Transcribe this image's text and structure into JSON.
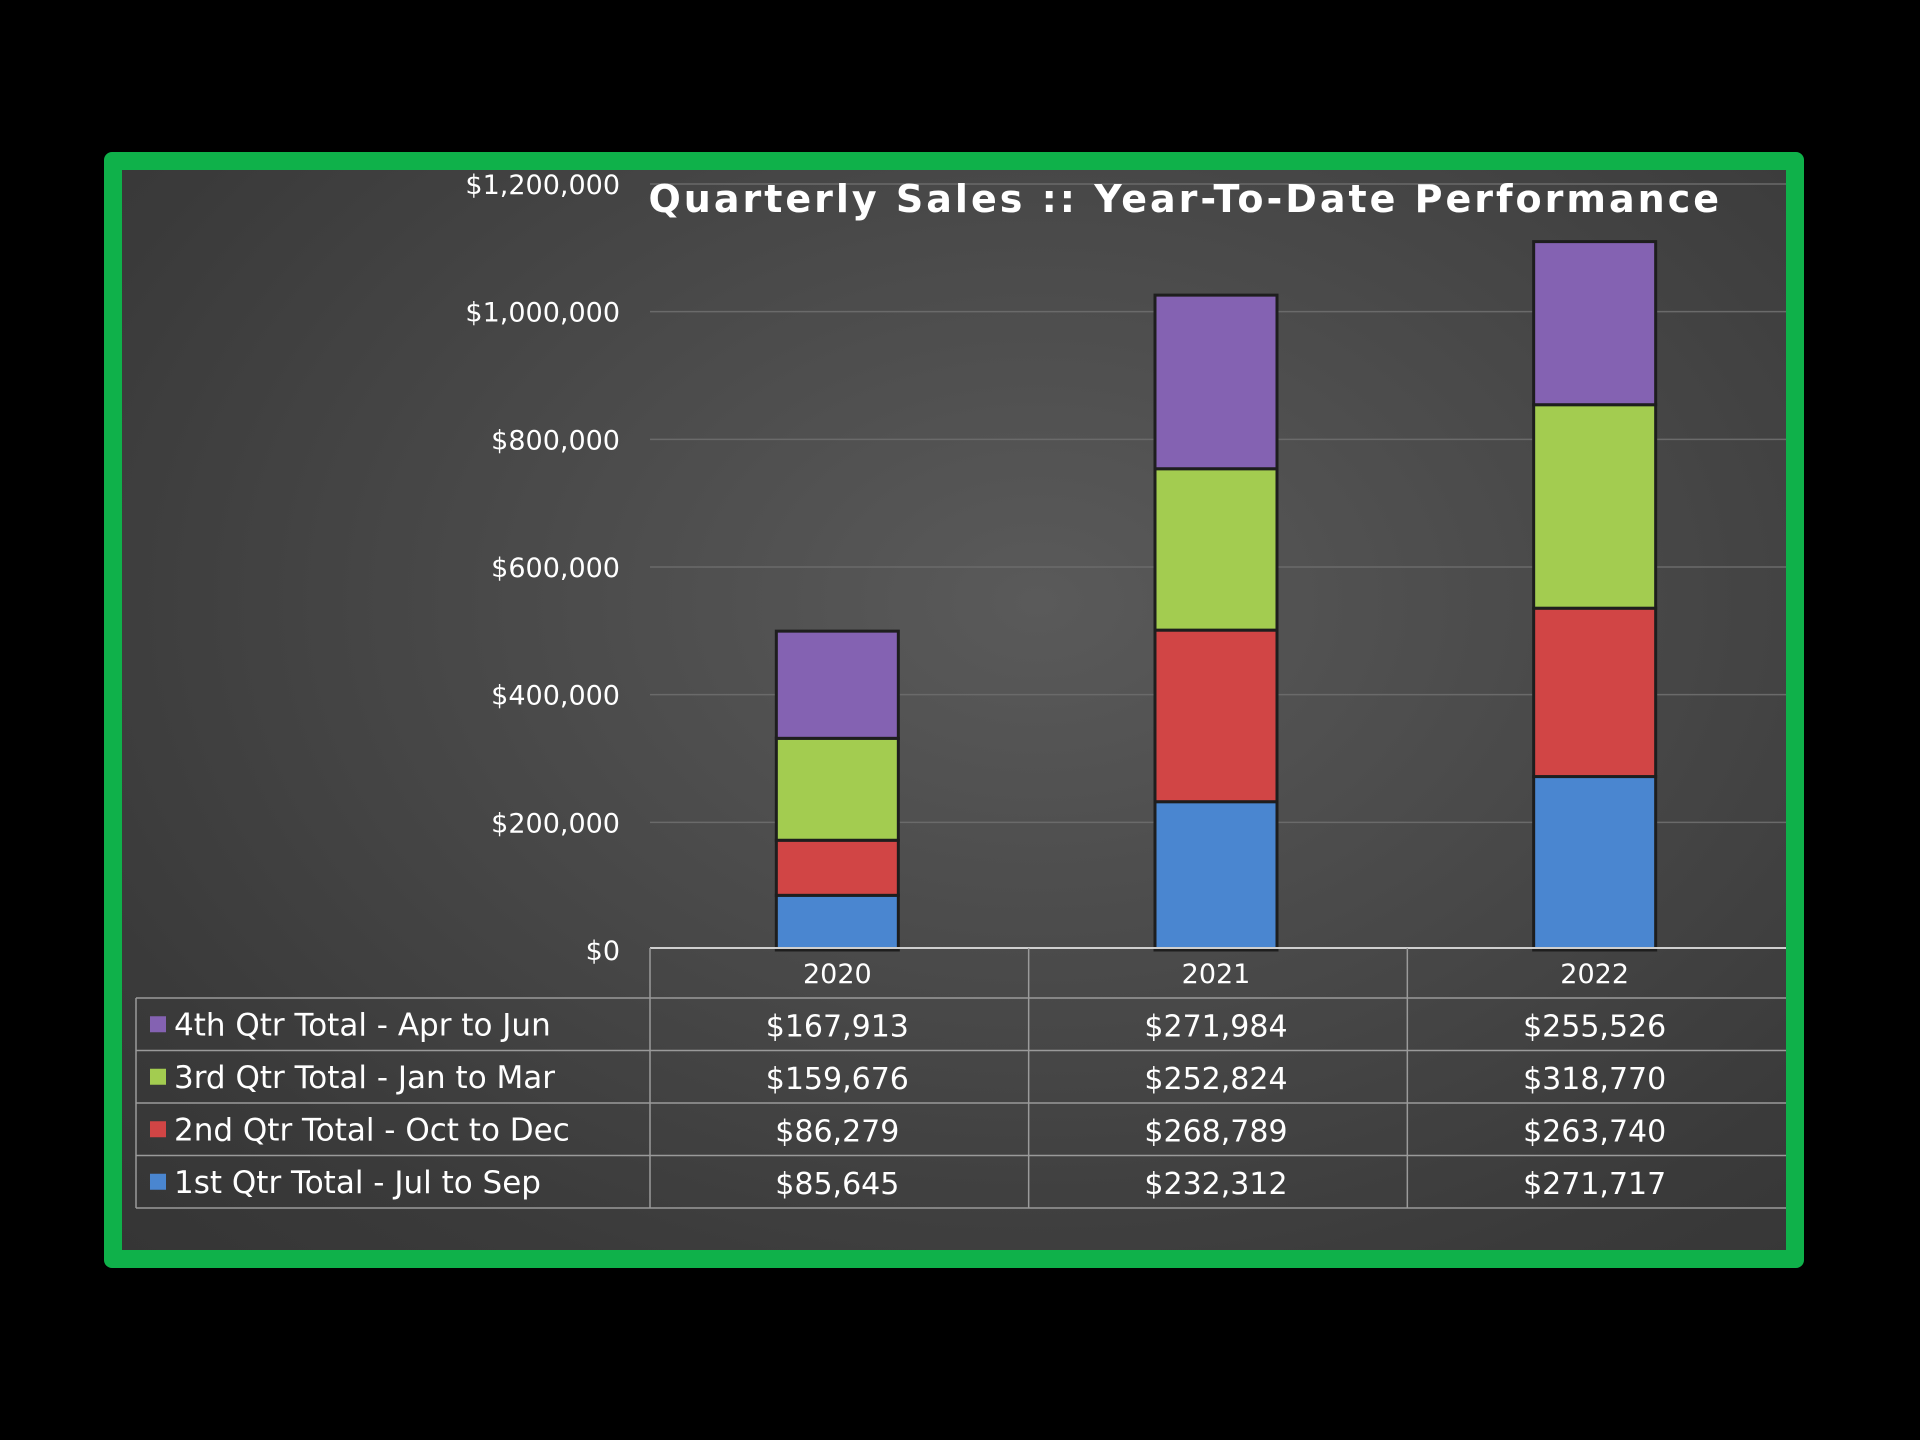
{
  "chart_data": {
    "type": "bar",
    "stacked": true,
    "title": "Quarterly Sales ::  Year-To-Date Performance",
    "categories": [
      "2020",
      "2021",
      "2022"
    ],
    "series": [
      {
        "name": "1st Qtr Total - Jul to Sep",
        "color": "#4a86d0",
        "values": [
          85645,
          232312,
          271717
        ],
        "labels": [
          "$85,645",
          "$232,312",
          "$271,717"
        ]
      },
      {
        "name": "2nd Qtr Total - Oct to Dec",
        "color": "#d14545",
        "values": [
          86279,
          268789,
          263740
        ],
        "labels": [
          "$86,279",
          "$268,789",
          "$263,740"
        ]
      },
      {
        "name": "3rd Qtr Total - Jan to Mar",
        "color": "#a3cc50",
        "values": [
          159676,
          252824,
          318770
        ],
        "labels": [
          "$159,676",
          "$252,824",
          "$318,770"
        ]
      },
      {
        "name": "4th Qtr Total - Apr to Jun",
        "color": "#8462b2",
        "values": [
          167913,
          271984,
          255526
        ],
        "labels": [
          "$167,913",
          "$271,984",
          "$255,526"
        ]
      }
    ],
    "data_table_order": [
      "4th Qtr Total - Apr to Jun",
      "3rd Qtr Total - Jan to Mar",
      "2nd Qtr Total - Oct to Dec",
      "1st Qtr Total - Jul to Sep"
    ],
    "y_ticks": [
      "$0",
      "$200,000",
      "$400,000",
      "$600,000",
      "$800,000",
      "$1,000,000",
      "$1,200,000"
    ],
    "ylim": [
      0,
      1200000
    ],
    "grid": true,
    "legend": "data-table"
  }
}
